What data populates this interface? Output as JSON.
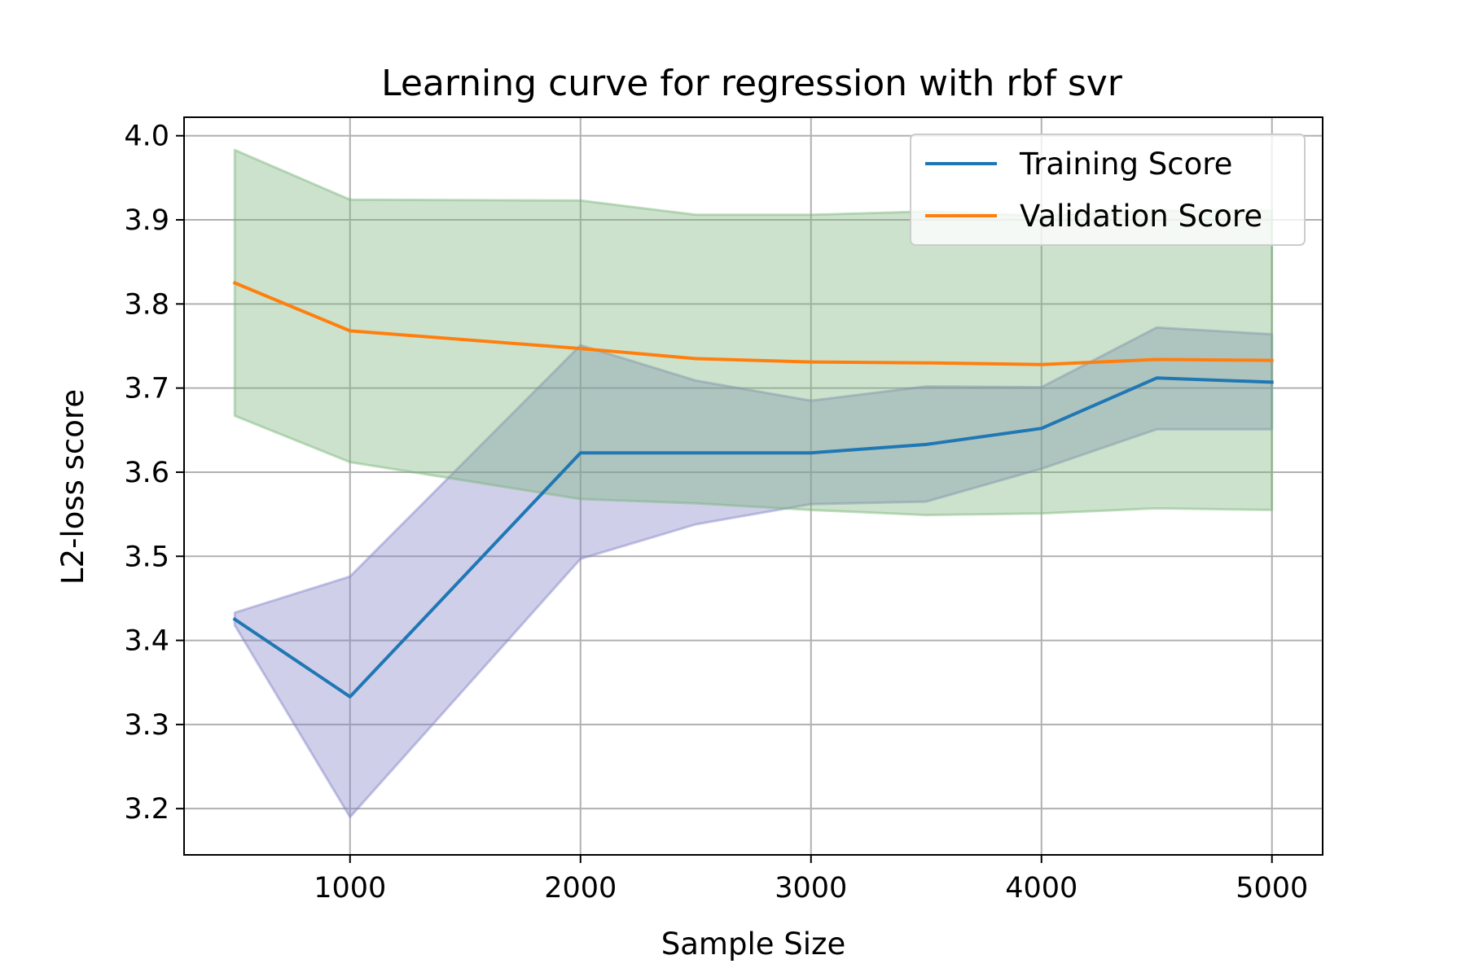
{
  "chart_data": {
    "type": "line",
    "title": "Learning curve for regression with rbf svr",
    "xlabel": "Sample Size",
    "ylabel": "L2-loss score",
    "xlim": [
      280,
      5220
    ],
    "ylim": [
      3.145,
      4.022
    ],
    "xticks": [
      1000,
      2000,
      3000,
      4000,
      5000
    ],
    "xtick_labels": [
      "1000",
      "2000",
      "3000",
      "4000",
      "5000"
    ],
    "yticks": [
      3.2,
      3.3,
      3.4,
      3.5,
      3.6,
      3.7,
      3.8,
      3.9,
      4.0
    ],
    "ytick_labels": [
      "3.2",
      "3.3",
      "3.4",
      "3.5",
      "3.6",
      "3.7",
      "3.8",
      "3.9",
      "4.0"
    ],
    "grid": true,
    "legend_position": "top-right",
    "x": [
      500,
      1000,
      2000,
      2500,
      3000,
      3500,
      4000,
      4500,
      5000
    ],
    "series": [
      {
        "name": "Training Score",
        "color": "#1f77b4",
        "values": [
          3.425,
          3.333,
          3.623,
          3.623,
          3.623,
          3.633,
          3.652,
          3.712,
          3.707
        ],
        "band_lower": [
          3.418,
          3.19,
          3.497,
          3.538,
          3.562,
          3.565,
          3.604,
          3.651,
          3.651
        ],
        "band_upper": [
          3.433,
          3.476,
          3.751,
          3.709,
          3.685,
          3.702,
          3.701,
          3.772,
          3.764
        ],
        "band_color": "#8080c8"
      },
      {
        "name": "Validation Score",
        "color": "#ff7f0e",
        "values": [
          3.825,
          3.768,
          3.747,
          3.735,
          3.731,
          3.73,
          3.728,
          3.734,
          3.733
        ],
        "band_lower": [
          3.667,
          3.612,
          3.568,
          3.563,
          3.555,
          3.549,
          3.551,
          3.557,
          3.555
        ],
        "band_upper": [
          3.983,
          3.924,
          3.923,
          3.906,
          3.906,
          3.91,
          3.905,
          3.911,
          3.911
        ],
        "band_color": "#78b478"
      }
    ]
  }
}
